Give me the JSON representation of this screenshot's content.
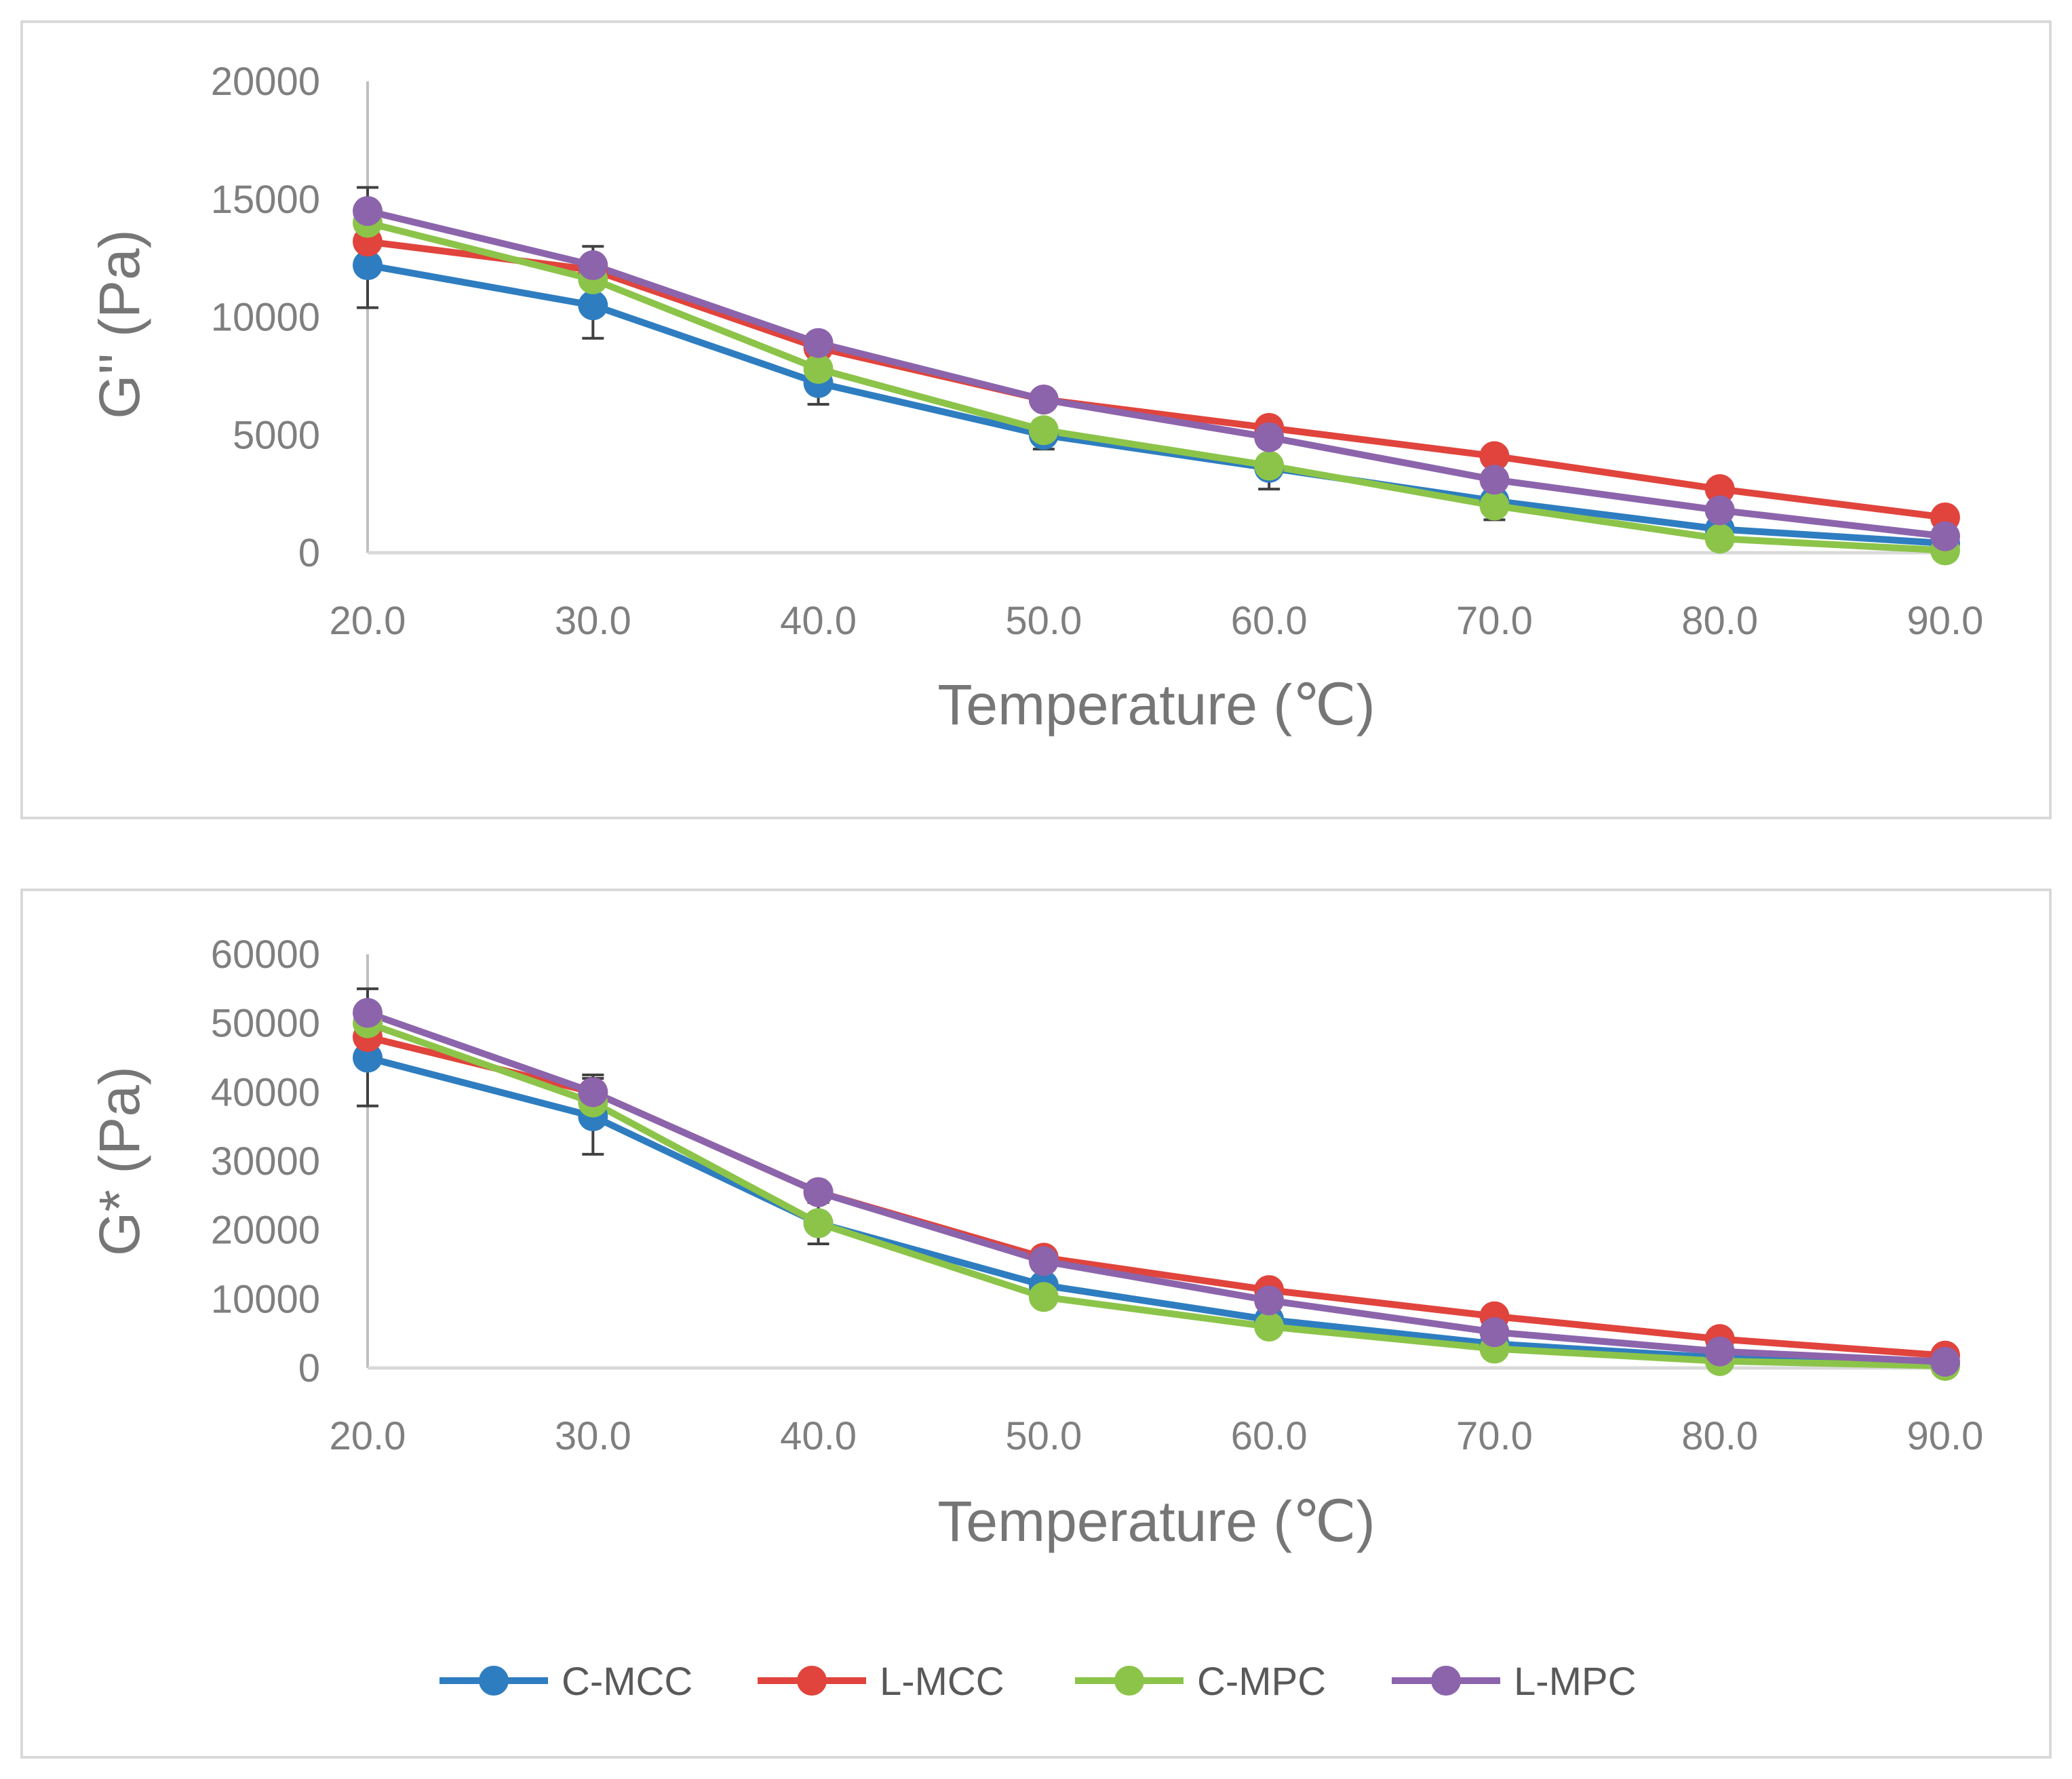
{
  "chart_data": [
    {
      "type": "line",
      "title": "",
      "xlabel": "Temperature (℃)",
      "ylabel": "G'' (Pa)",
      "x": [
        20.0,
        30.0,
        40.0,
        50.0,
        60.0,
        70.0,
        80.0,
        90.0
      ],
      "x_tick_labels": [
        "20.0",
        "30.0",
        "40.0",
        "50.0",
        "60.0",
        "70.0",
        "80.0",
        "90.0"
      ],
      "y_tick_labels": [
        "0",
        "5000",
        "10000",
        "15000",
        "20000"
      ],
      "y_ticks": [
        0,
        5000,
        10000,
        15000,
        20000
      ],
      "ylim": [
        0,
        20000
      ],
      "grid": false,
      "series": [
        {
          "name": "C-MCC",
          "color": "#2e7dc0",
          "values": [
            12200,
            10500,
            7200,
            5000,
            3600,
            2200,
            1000,
            400
          ],
          "error": [
            1800,
            1400,
            900,
            600,
            900,
            800,
            300,
            200
          ]
        },
        {
          "name": "L-MCC",
          "color": "#e0443c",
          "values": [
            13200,
            12000,
            8700,
            6500,
            5300,
            4100,
            2700,
            1500
          ],
          "error": [
            0,
            0,
            0,
            0,
            0,
            0,
            0,
            0
          ]
        },
        {
          "name": "C-MPC",
          "color": "#8cc44a",
          "values": [
            14000,
            11600,
            7800,
            5200,
            3700,
            2000,
            600,
            100
          ],
          "error": [
            0,
            0,
            0,
            0,
            0,
            0,
            0,
            0
          ]
        },
        {
          "name": "L-MPC",
          "color": "#8c64ac",
          "values": [
            14500,
            12200,
            8900,
            6500,
            4900,
            3100,
            1800,
            700
          ],
          "error": [
            1000,
            800,
            0,
            0,
            0,
            0,
            0,
            0
          ]
        }
      ]
    },
    {
      "type": "line",
      "title": "",
      "xlabel": "Temperature (℃)",
      "ylabel": "G* (Pa)",
      "x": [
        20.0,
        30.0,
        40.0,
        50.0,
        60.0,
        70.0,
        80.0,
        90.0
      ],
      "x_tick_labels": [
        "20.0",
        "30.0",
        "40.0",
        "50.0",
        "60.0",
        "70.0",
        "80.0",
        "90.0"
      ],
      "y_tick_labels": [
        "0",
        "10000",
        "20000",
        "30000",
        "40000",
        "50000",
        "60000"
      ],
      "y_ticks": [
        0,
        10000,
        20000,
        30000,
        40000,
        50000,
        60000
      ],
      "ylim": [
        0,
        60000
      ],
      "grid": false,
      "series": [
        {
          "name": "C-MCC",
          "color": "#2e7dc0",
          "values": [
            45000,
            36500,
            21000,
            12000,
            7000,
            3500,
            1500,
            500
          ],
          "error": [
            7000,
            5500,
            3000,
            0,
            0,
            0,
            0,
            0
          ]
        },
        {
          "name": "L-MCC",
          "color": "#e0443c",
          "values": [
            48000,
            40000,
            25500,
            16000,
            11300,
            7500,
            4200,
            1800
          ],
          "error": [
            0,
            0,
            0,
            0,
            0,
            0,
            0,
            0
          ]
        },
        {
          "name": "C-MPC",
          "color": "#8cc44a",
          "values": [
            50000,
            38500,
            21000,
            10300,
            6000,
            2800,
            1000,
            300
          ],
          "error": [
            0,
            0,
            0,
            0,
            0,
            0,
            0,
            0
          ]
        },
        {
          "name": "L-MPC",
          "color": "#8c64ac",
          "values": [
            51500,
            40000,
            25500,
            15500,
            9800,
            5200,
            2400,
            900
          ],
          "error": [
            3500,
            2500,
            0,
            0,
            0,
            0,
            0,
            0
          ]
        }
      ]
    }
  ],
  "legend": {
    "placement": "bottom",
    "items": [
      {
        "label": "C-MCC",
        "color": "#2e7dc0"
      },
      {
        "label": "L-MCC",
        "color": "#e0443c"
      },
      {
        "label": "C-MPC",
        "color": "#8cc44a"
      },
      {
        "label": "L-MPC",
        "color": "#8c64ac"
      }
    ]
  },
  "colors": {
    "axis": "#d9d9d9",
    "y_axis": "#bfbfbf",
    "error_bar": "#404040",
    "tick_text": "#7f7f7f",
    "title_text": "#767676"
  }
}
